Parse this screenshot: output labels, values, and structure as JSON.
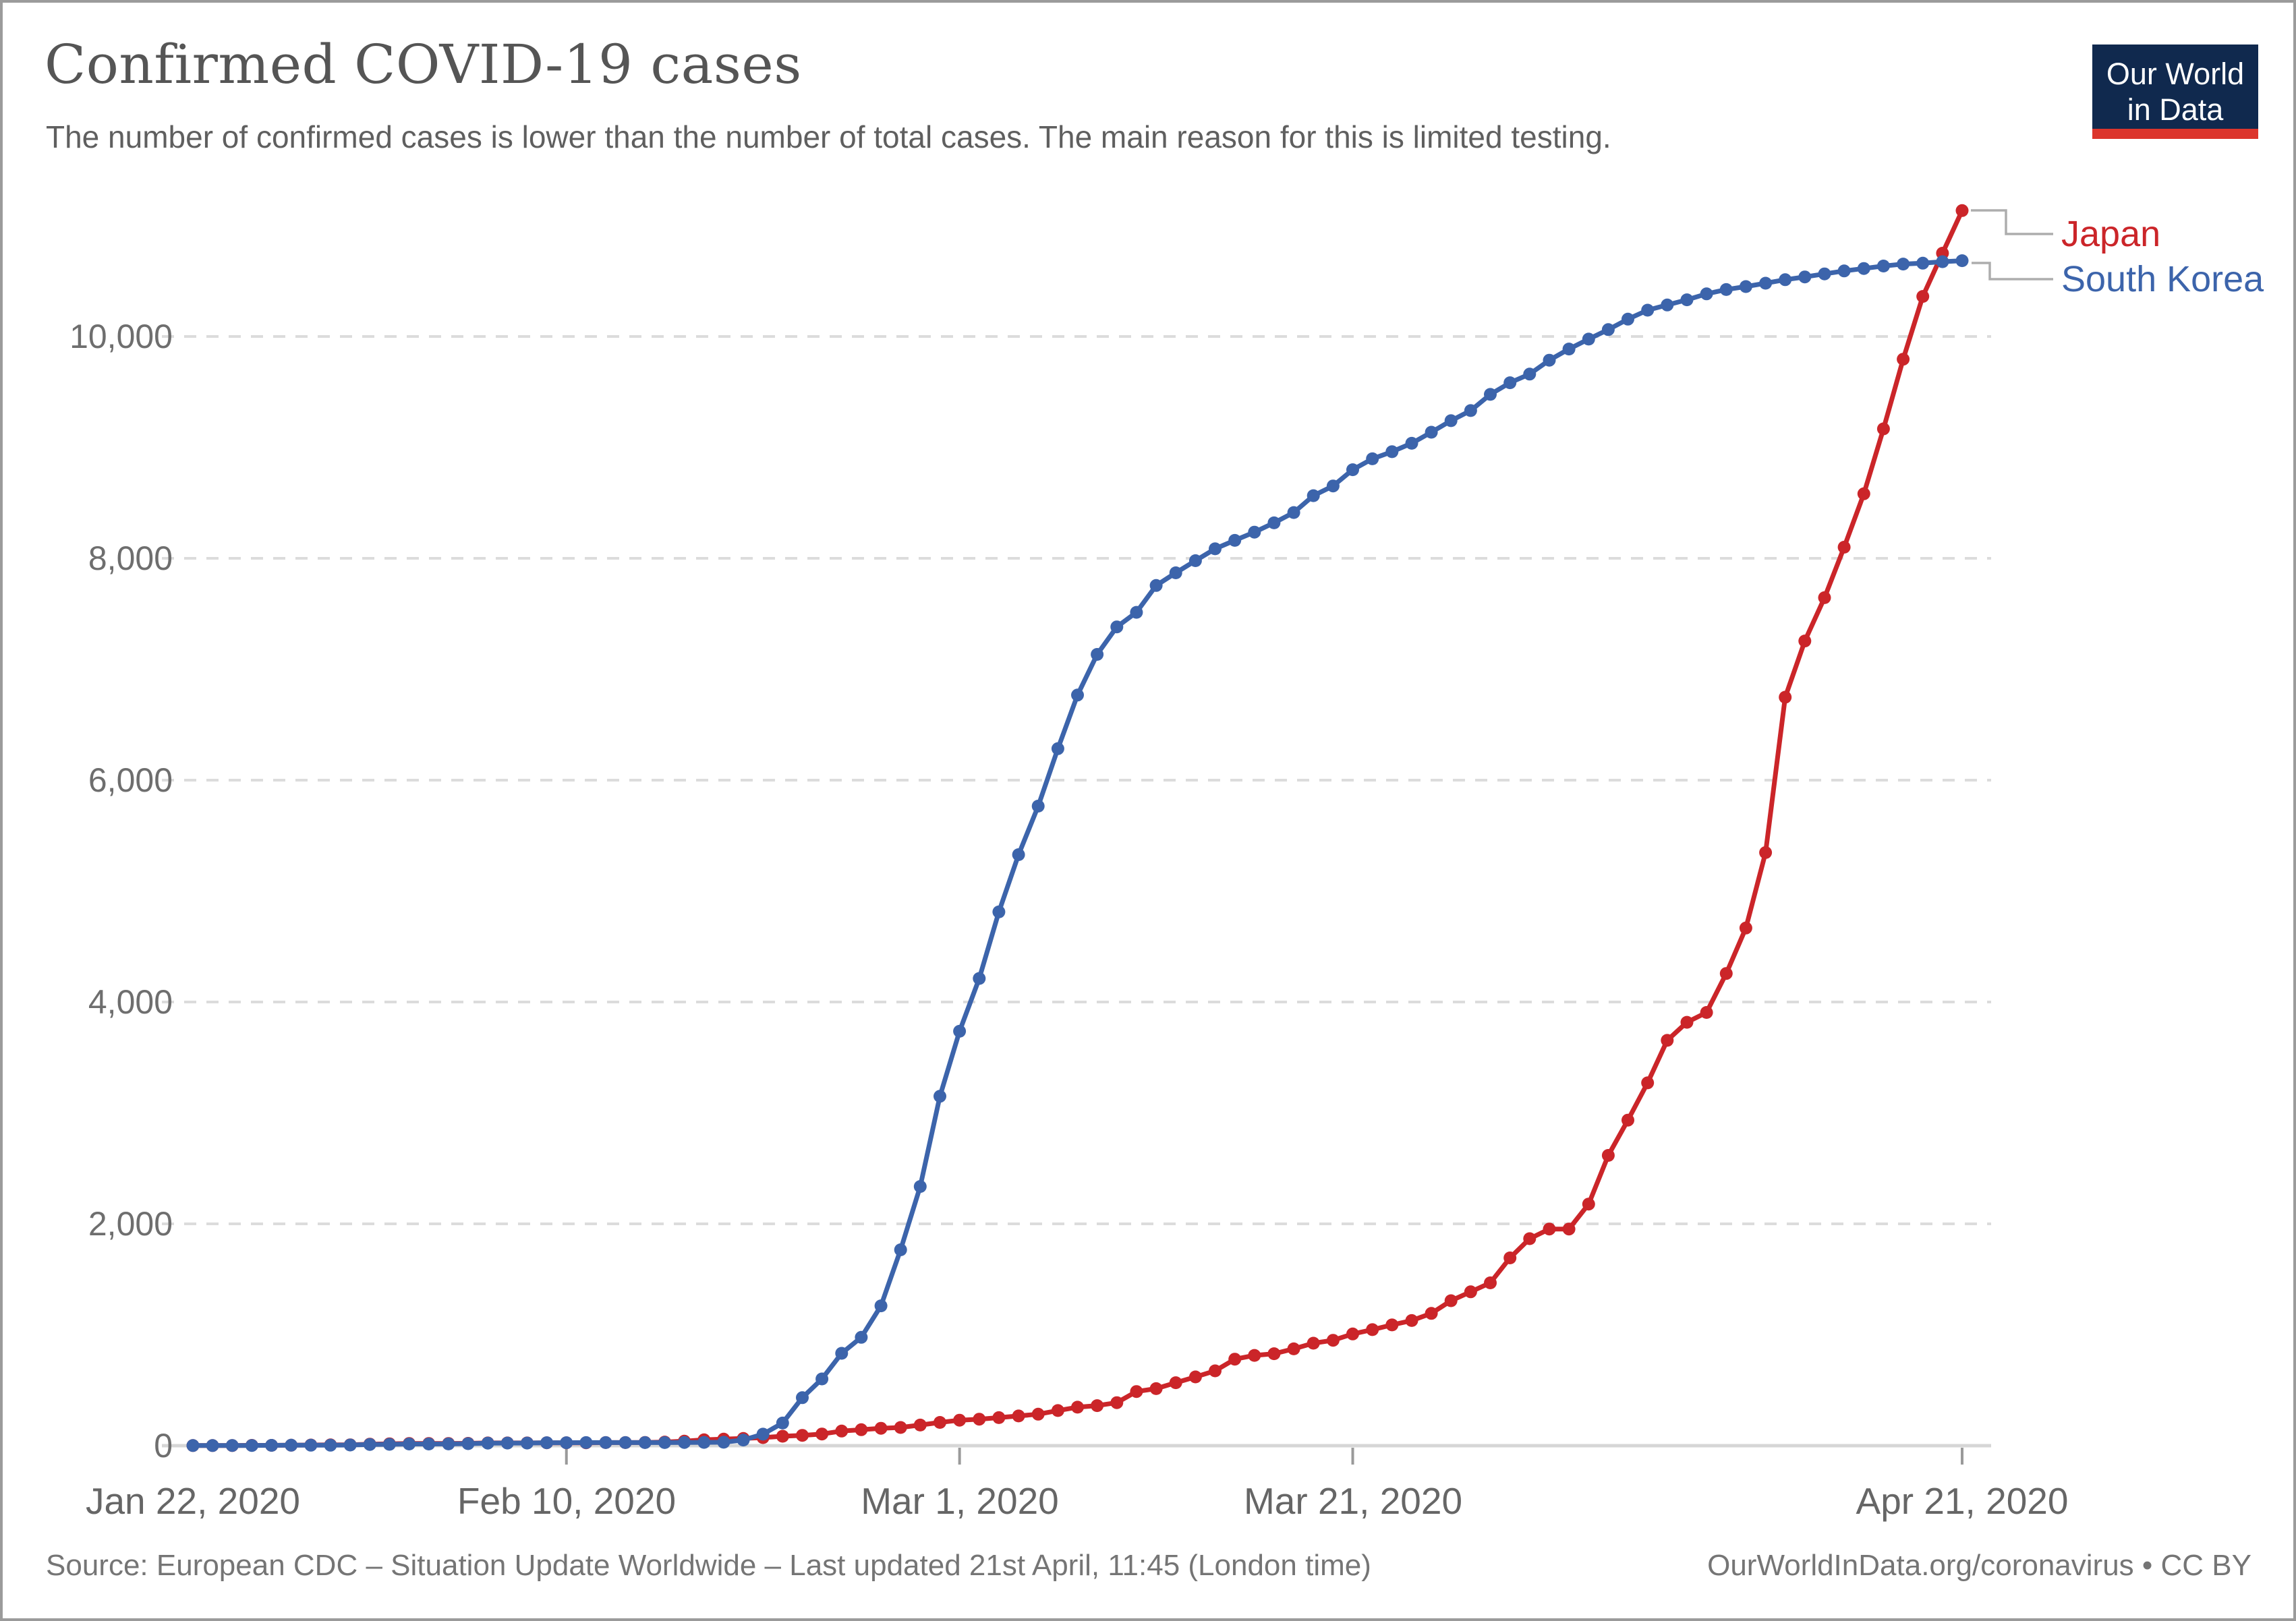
{
  "header": {
    "title": "Confirmed COVID-19 cases",
    "subtitle": "The number of confirmed cases is lower than the number of total cases. The main reason for this is limited testing.",
    "logo": {
      "line1": "Our World",
      "line2": "in Data",
      "bg_color": "#10294e",
      "bar_color": "#dc352c"
    }
  },
  "legend": {
    "items": [
      {
        "label": "Japan",
        "color": "#cb2529"
      },
      {
        "label": "South Korea",
        "color": "#3c64ab"
      }
    ]
  },
  "axes": {
    "y_labels": [
      "0",
      "2,000",
      "4,000",
      "6,000",
      "8,000",
      "10,000"
    ],
    "x_labels": [
      "Jan 22, 2020",
      "Feb 10, 2020",
      "Mar 1, 2020",
      "Mar 21, 2020",
      "Apr 21, 2020"
    ]
  },
  "footer": {
    "source": "Source: European CDC – Situation Update Worldwide – Last updated 21st April, 11:45 (London time)",
    "credit": "OurWorldInData.org/coronavirus • CC BY"
  },
  "chart_data": {
    "type": "line",
    "title": "Confirmed COVID-19 cases",
    "x_start_date": "2020-01-22",
    "x_end_date": "2020-04-21",
    "x_frequency": "daily",
    "x_tick_labels": [
      "Jan 22, 2020",
      "Feb 10, 2020",
      "Mar 1, 2020",
      "Mar 21, 2020",
      "Apr 21, 2020"
    ],
    "x_tick_day_indices": [
      0,
      19,
      39,
      59,
      90
    ],
    "ylim": [
      0,
      11200
    ],
    "y_ticks": [
      0,
      2000,
      4000,
      6000,
      8000,
      10000
    ],
    "grid": "horizontal dashed",
    "marker": "circle",
    "legend_position": "right of line ends",
    "grid_color": "#dcdcdc",
    "baseline_color": "#d6d6d6",
    "tick_color": "#9a9a9a",
    "connector_color": "#adadad",
    "series": [
      {
        "name": "Japan",
        "color": "#cb2529",
        "values": [
          1,
          1,
          1,
          3,
          3,
          4,
          6,
          7,
          8,
          14,
          17,
          20,
          20,
          20,
          21,
          25,
          25,
          25,
          26,
          26,
          26,
          28,
          28,
          29,
          33,
          41,
          53,
          59,
          65,
          73,
          85,
          93,
          105,
          132,
          144,
          157,
          164,
          186,
          210,
          230,
          239,
          253,
          268,
          284,
          317,
          347,
          361,
          388,
          488,
          514,
          568,
          620,
          675,
          780,
          814,
          829,
          873,
          924,
          950,
          1007,
          1046,
          1089,
          1128,
          1193,
          1307,
          1387,
          1468,
          1693,
          1866,
          1953,
          1953,
          2178,
          2617,
          2935,
          3271,
          3654,
          3817,
          3906,
          4257,
          4667,
          5347,
          6748,
          7255,
          7645,
          8100,
          8582,
          9167,
          9795,
          10361,
          10751,
          11135
        ]
      },
      {
        "name": "South Korea",
        "color": "#3c64ab",
        "values": [
          1,
          1,
          2,
          2,
          3,
          4,
          4,
          4,
          6,
          11,
          12,
          15,
          15,
          16,
          18,
          23,
          24,
          24,
          27,
          27,
          28,
          28,
          28,
          28,
          28,
          29,
          30,
          31,
          51,
          104,
          204,
          433,
          602,
          833,
          977,
          1261,
          1766,
          2337,
          3150,
          3736,
          4212,
          4812,
          5328,
          5766,
          6284,
          6767,
          7134,
          7382,
          7513,
          7755,
          7869,
          7979,
          8086,
          8162,
          8236,
          8320,
          8413,
          8565,
          8652,
          8799,
          8897,
          8961,
          9037,
          9137,
          9241,
          9332,
          9478,
          9583,
          9661,
          9786,
          9887,
          9976,
          10062,
          10156,
          10237,
          10284,
          10331,
          10384,
          10423,
          10450,
          10480,
          10512,
          10537,
          10564,
          10591,
          10613,
          10635,
          10653,
          10661,
          10674,
          10683
        ]
      }
    ]
  }
}
